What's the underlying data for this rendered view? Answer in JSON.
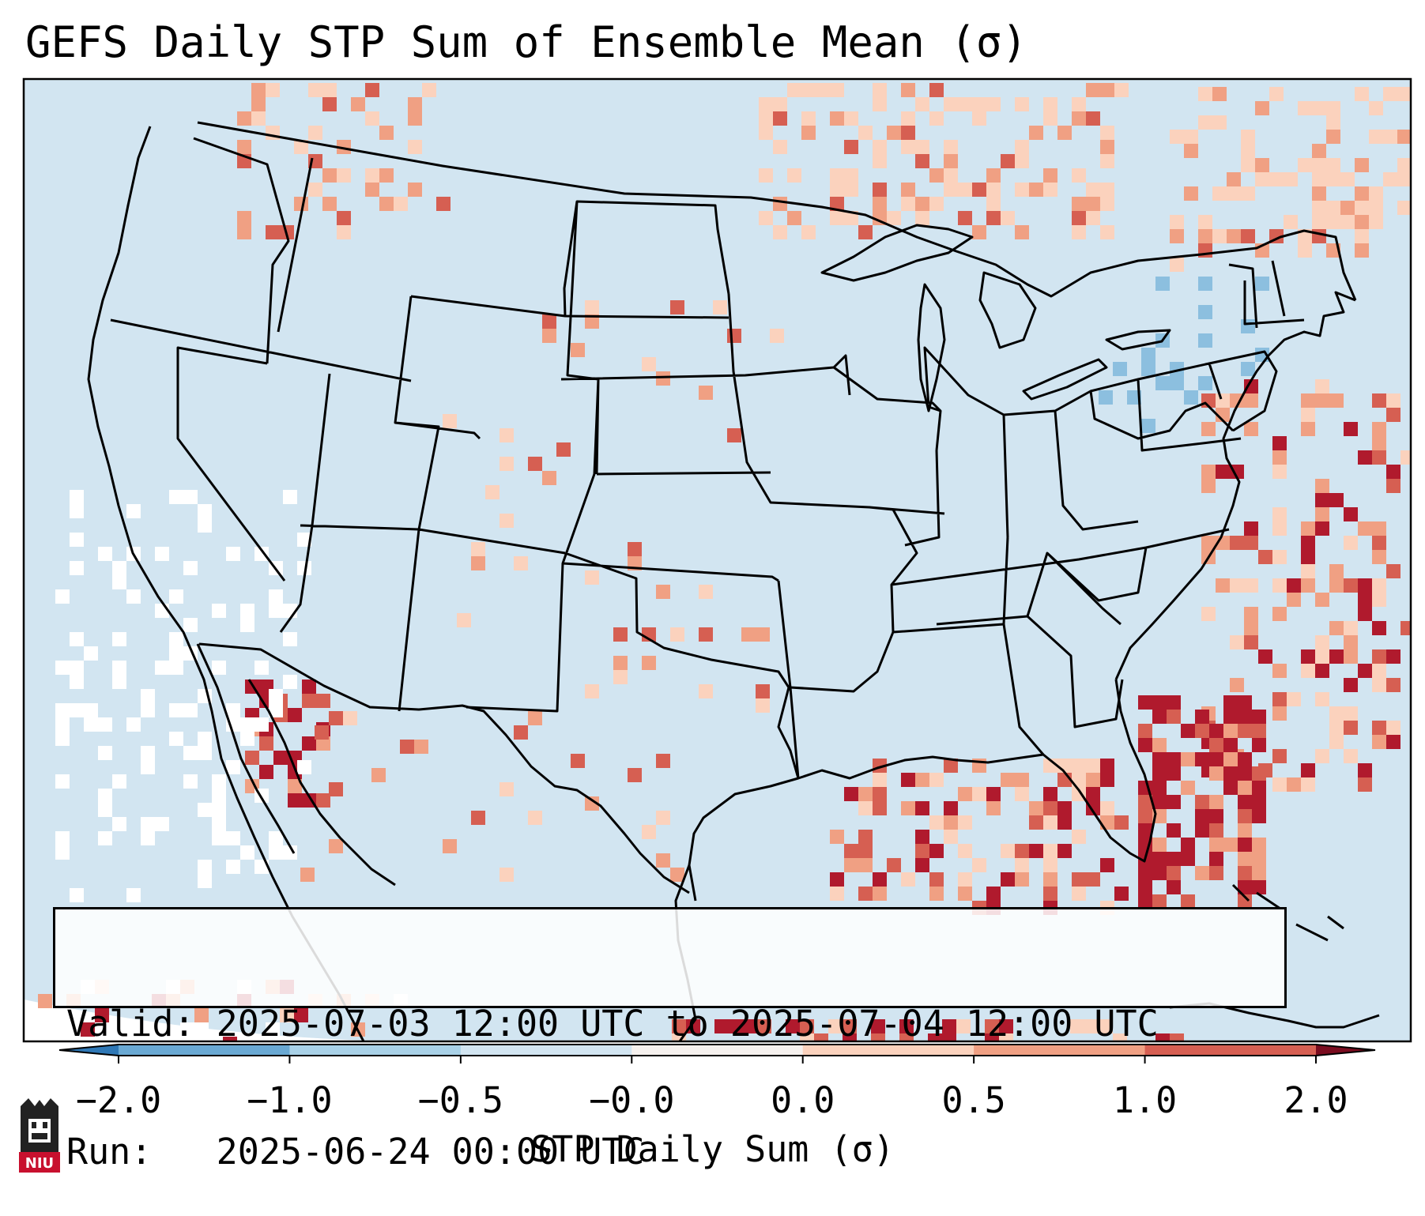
{
  "title": "GEFS Daily STP Sum of Ensemble Mean (σ)",
  "info": {
    "valid": "Valid: 2025-07-03 12:00 UTC to 2025-07-04 12:00 UTC",
    "run": "Run:   2025-06-24 00:00 UTC"
  },
  "colorbar": {
    "label": "STP Daily Sum (σ)",
    "ticks": [
      "−2.0",
      "−1.0",
      "−0.5",
      "−0.0",
      "0.0",
      "0.5",
      "1.0",
      "2.0"
    ],
    "colors": [
      "#2f78b6",
      "#6aa9d3",
      "#a9d1e7",
      "#d2e5f1",
      "#f6f1ee",
      "#fbd2bd",
      "#f0a083",
      "#d65f52",
      "#b01a2d",
      "#7a0c1f"
    ]
  },
  "map": {
    "ocean_color": "#d2e5f1",
    "outside_color": "#ffffff",
    "boundary_color": "#000000"
  },
  "logo": {
    "text": "NIU",
    "icon": "niu-logo-icon"
  }
}
